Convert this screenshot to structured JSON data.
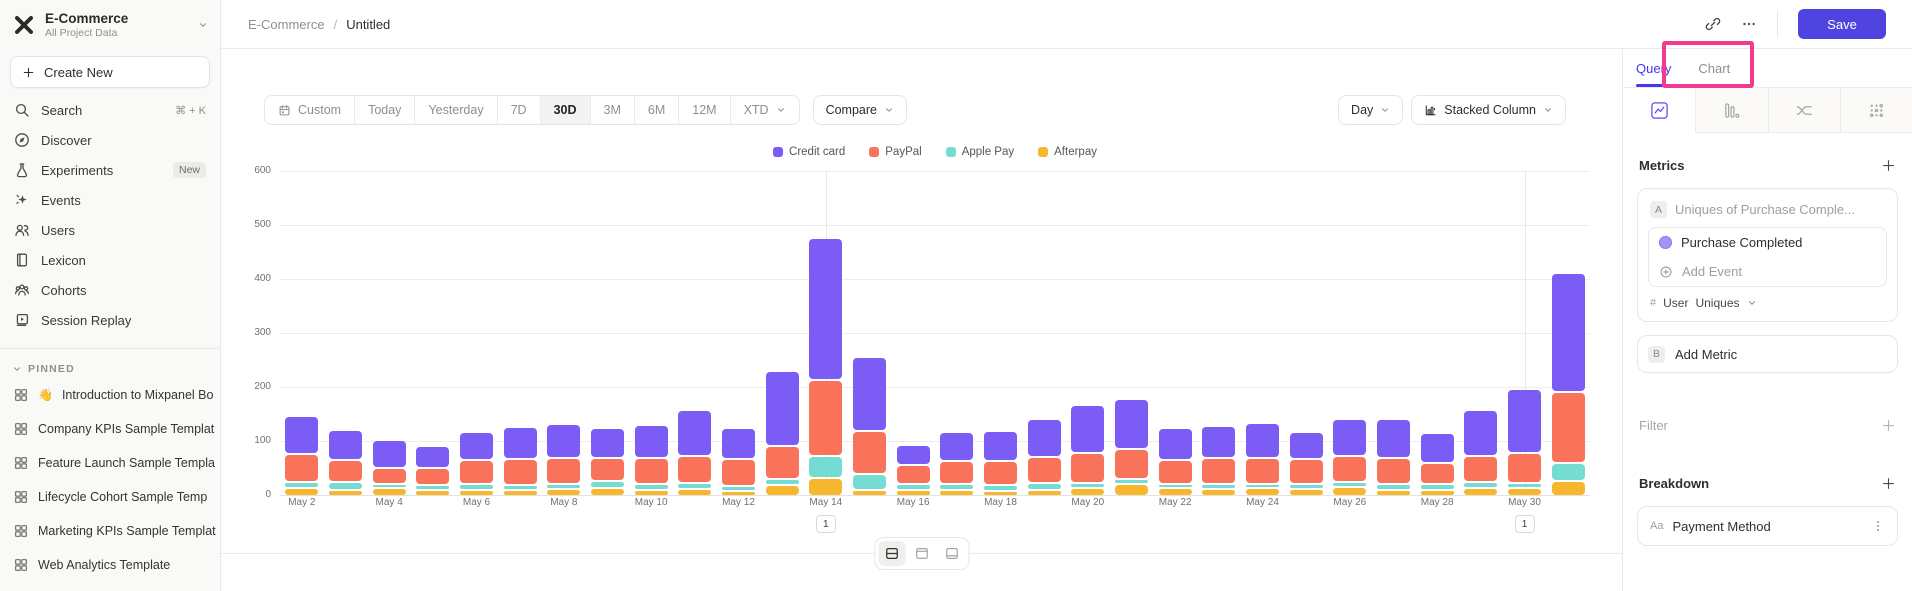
{
  "colors": {
    "accent": "#4f44e0",
    "query_active": "#4636ee",
    "highlight_pink": "#f23a8f"
  },
  "sidebar": {
    "project": {
      "name": "E-Commerce",
      "subtitle": "All Project Data"
    },
    "create_new_label": "Create New",
    "nav": [
      {
        "label": "Search",
        "icon": "search-icon",
        "shortcut": "⌘ + K"
      },
      {
        "label": "Discover",
        "icon": "compass-icon"
      },
      {
        "label": "Experiments",
        "icon": "flask-icon",
        "badge": "New"
      },
      {
        "label": "Events",
        "icon": "spark-icon"
      },
      {
        "label": "Users",
        "icon": "users-icon"
      },
      {
        "label": "Lexicon",
        "icon": "book-icon"
      },
      {
        "label": "Cohorts",
        "icon": "cohorts-icon"
      },
      {
        "label": "Session Replay",
        "icon": "replay-icon"
      }
    ],
    "pinned": {
      "header": "PINNED",
      "items": [
        {
          "emoji": "👋",
          "label": "Introduction to Mixpanel Bo"
        },
        {
          "label": "Company KPIs Sample Templat"
        },
        {
          "label": "Feature Launch Sample Templa"
        },
        {
          "label": "Lifecycle Cohort Sample Temp"
        },
        {
          "label": "Marketing KPIs Sample Templat"
        },
        {
          "label": "Web Analytics Template"
        }
      ]
    }
  },
  "topbar": {
    "breadcrumb": [
      "E-Commerce",
      "Untitled"
    ],
    "separator": "/",
    "save_label": "Save"
  },
  "toolbar": {
    "date_ranges": [
      "Custom",
      "Today",
      "Yesterday",
      "7D",
      "30D",
      "3M",
      "6M",
      "12M",
      "XTD"
    ],
    "selected_range": "30D",
    "compare_label": "Compare",
    "granularity_label": "Day",
    "chart_type_label": "Stacked Column",
    "layout_toggles": [
      "split-horizontal-icon",
      "split-top-icon",
      "split-bottom-icon"
    ]
  },
  "chart_data": {
    "type": "bar",
    "stacked": true,
    "title": "",
    "xlabel": "",
    "ylabel": "",
    "ylim": [
      0,
      600
    ],
    "yticks": [
      0,
      100,
      200,
      300,
      400,
      500,
      600
    ],
    "grid": "horizontal",
    "legend_position": "top",
    "categories": [
      "May 2",
      "May 3",
      "May 4",
      "May 5",
      "May 6",
      "May 7",
      "May 8",
      "May 9",
      "May 10",
      "May 11",
      "May 12",
      "May 13",
      "May 14",
      "May 15",
      "May 16",
      "May 17",
      "May 18",
      "May 19",
      "May 20",
      "May 21",
      "May 22",
      "May 23",
      "May 24",
      "May 25",
      "May 26",
      "May 27",
      "May 28",
      "May 29",
      "May 30",
      "May 31"
    ],
    "x_tick_labels": [
      "May 2",
      "May 4",
      "May 6",
      "May 8",
      "May 10",
      "May 12",
      "May 14",
      "May 16",
      "May 18",
      "May 20",
      "May 22",
      "May 24",
      "May 26",
      "May 28",
      "May 30"
    ],
    "series": [
      {
        "name": "Credit card",
        "color": "#7b5cf5",
        "values": [
          71,
          57,
          52,
          41,
          52,
          60,
          64,
          55,
          62,
          85,
          58,
          139,
          264,
          137,
          38,
          54,
          56,
          70,
          88,
          92,
          59,
          58,
          65,
          51,
          69,
          72,
          55,
          85,
          120,
          221
        ]
      },
      {
        "name": "PayPal",
        "color": "#f9735b",
        "values": [
          51,
          40,
          29,
          32,
          45,
          48,
          47,
          44,
          48,
          50,
          50,
          60,
          140,
          79,
          35,
          42,
          45,
          48,
          55,
          55,
          45,
          48,
          48,
          45,
          48,
          48,
          40,
          48,
          55,
          131
        ]
      },
      {
        "name": "Apple Pay",
        "color": "#74dcd2",
        "values": [
          11,
          14,
          8,
          7,
          10,
          8,
          10,
          12,
          10,
          12,
          8,
          12,
          41,
          29,
          10,
          10,
          10,
          12,
          10,
          10,
          8,
          10,
          9,
          10,
          10,
          10,
          10,
          12,
          10,
          34
        ]
      },
      {
        "name": "Afterpay",
        "color": "#f6b62e",
        "values": [
          15,
          12,
          14,
          12,
          12,
          12,
          13,
          15,
          12,
          13,
          10,
          20,
          33,
          12,
          12,
          12,
          10,
          12,
          15,
          22,
          14,
          13,
          14,
          13,
          16,
          12,
          12,
          14,
          14,
          27
        ]
      }
    ],
    "annotations": [
      {
        "category": "May 14",
        "label": "1"
      },
      {
        "category": "May 30",
        "label": "1"
      }
    ]
  },
  "panel": {
    "tabs": [
      {
        "label": "Query",
        "active": true
      },
      {
        "label": "Chart",
        "active": false
      }
    ],
    "view_tabs": [
      "insights-icon",
      "funnels-icon",
      "flows-icon",
      "retention-icon"
    ],
    "metrics": {
      "header": "Metrics",
      "row_badge": "A",
      "row_label": "Uniques of Purchase Comple...",
      "event_label": "Purchase Completed",
      "add_event_label": "Add Event",
      "measure_prefix": "#",
      "measure_entity": "User",
      "measure_agg": "Uniques",
      "add_metric_badge": "B",
      "add_metric_label": "Add Metric"
    },
    "filter": {
      "header": "Filter"
    },
    "breakdown": {
      "header": "Breakdown",
      "item_prefix": "Aa",
      "item_label": "Payment Method"
    }
  }
}
